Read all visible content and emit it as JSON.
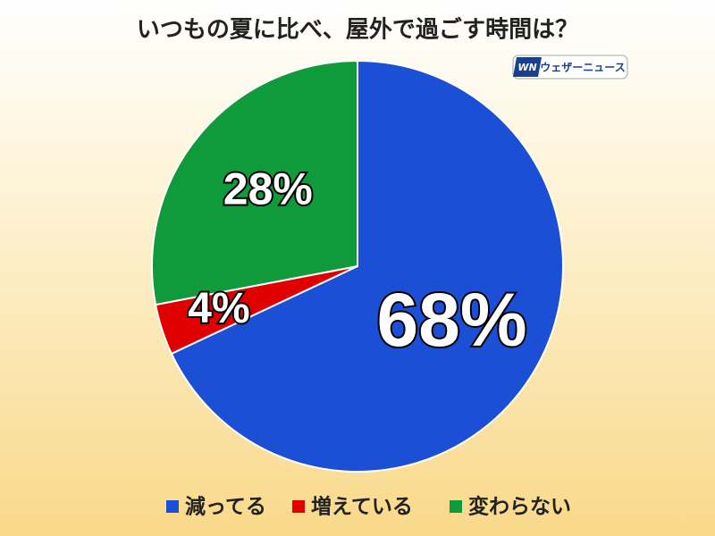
{
  "chart_data": {
    "type": "pie",
    "title": "いつもの夏に比べ、屋外で過ごす時間は？",
    "logo_mark": "WN",
    "logo": "ウェザーニュース",
    "categories": [
      "減ってる",
      "増えている",
      "変わらない"
    ],
    "values": [
      68,
      4,
      28
    ],
    "value_labels": [
      "68%",
      "4%",
      "28%"
    ],
    "colors": [
      "#1a4fd6",
      "#e00000",
      "#0f9a3c"
    ]
  }
}
